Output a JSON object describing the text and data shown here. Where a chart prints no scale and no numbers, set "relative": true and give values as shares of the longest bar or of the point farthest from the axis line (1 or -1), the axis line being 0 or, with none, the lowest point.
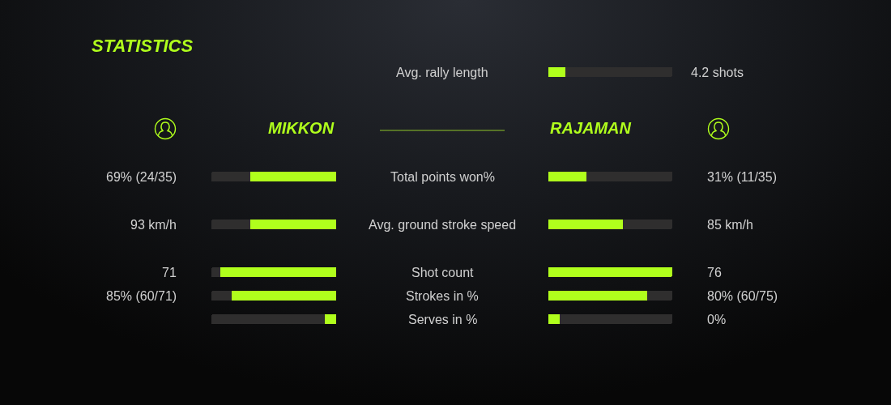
{
  "chart_data": [
    {
      "type": "bar",
      "orientation": "horizontal",
      "stacked": true,
      "relative": true,
      "title": "STATISTICS",
      "categories": [
        "Avg. rally length",
        "Total points won%",
        "Avg. ground stroke speed",
        "Shot count",
        "Strokes in %",
        "Serves in %"
      ],
      "series": [
        {
          "name": "MIKKON",
          "color": "#b0ff1c",
          "values": [
            null,
            -0.69,
            -0.69,
            -0.93,
            -0.84,
            -0.09
          ]
        },
        {
          "color": "#2f2e2e",
          "values": [
            null,
            -0.31,
            -0.31,
            -0.07,
            -0.16,
            -0.91
          ]
        }
      ],
      "annotations": [
        "69% (24/35)",
        "93 km/h",
        "71",
        "85% (60/71)"
      ]
    },
    {
      "type": "bar",
      "orientation": "horizontal",
      "stacked": true,
      "relative": true,
      "tick_labels": false,
      "categories": [
        "Avg. rally length",
        "Total points won%",
        "Avg. ground stroke speed",
        "Shot count",
        "Strokes in %",
        "Serves in %"
      ],
      "series": [
        {
          "name": "RAJAMAN",
          "color": "#b0ff1c",
          "values": [
            0.14,
            0.31,
            0.6,
            1,
            0.8,
            0.09
          ]
        },
        {
          "color": "#2f2e2e",
          "values": [
            0.86,
            0.69,
            0.4,
            0,
            0.2,
            0.91
          ]
        }
      ],
      "annotations": [
        "4.2 shots",
        "31% (11/35)",
        "85 km/h",
        "76",
        "80% (60/75)",
        "0%"
      ]
    }
  ]
}
